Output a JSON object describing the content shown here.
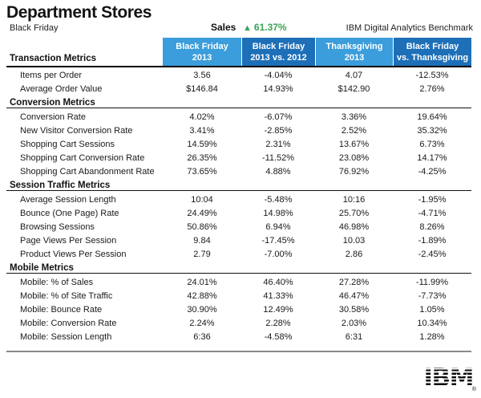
{
  "page": {
    "title": "Department Stores",
    "subtitle": "Black Friday",
    "sales_label": "Sales",
    "sales_arrow": "▲",
    "sales_change": "61.37%",
    "benchmark_label": "IBM Digital Analytics Benchmark"
  },
  "colors": {
    "light_blue": "#3b9ddb",
    "dark_blue": "#1d6fb8",
    "green": "#3aa355"
  },
  "columns": [
    {
      "line1": "Black Friday",
      "line2": "2013",
      "shade": "light",
      "width": 98
    },
    {
      "line1": "Black Friday",
      "line2": "2013 vs. 2012",
      "shade": "dark",
      "width": 92
    },
    {
      "line1": "Thanksgiving",
      "line2": "2013",
      "shade": "light",
      "width": 97
    },
    {
      "line1": "Black Friday",
      "line2": "vs. Thanksgiving",
      "shade": "dark",
      "width": 98
    }
  ],
  "sections": [
    {
      "name": "Transaction Metrics",
      "rows": [
        {
          "label": "Items per Order",
          "values": [
            "3.56",
            "-4.04%",
            "4.07",
            "-12.53%"
          ]
        },
        {
          "label": "Average Order Value",
          "values": [
            "$146.84",
            "14.93%",
            "$142.90",
            "2.76%"
          ]
        }
      ]
    },
    {
      "name": "Conversion Metrics",
      "rows": [
        {
          "label": "Conversion Rate",
          "values": [
            "4.02%",
            "-6.07%",
            "3.36%",
            "19.64%"
          ]
        },
        {
          "label": "New Visitor Conversion Rate",
          "values": [
            "3.41%",
            "-2.85%",
            "2.52%",
            "35.32%"
          ]
        },
        {
          "label": "Shopping Cart Sessions",
          "values": [
            "14.59%",
            "2.31%",
            "13.67%",
            "6.73%"
          ]
        },
        {
          "label": "Shopping Cart Conversion Rate",
          "values": [
            "26.35%",
            "-11.52%",
            "23.08%",
            "14.17%"
          ]
        },
        {
          "label": "Shopping Cart Abandonment Rate",
          "values": [
            "73.65%",
            "4.88%",
            "76.92%",
            "-4.25%"
          ]
        }
      ]
    },
    {
      "name": "Session Traffic Metrics",
      "rows": [
        {
          "label": "Average Session Length",
          "values": [
            "10:04",
            "-5.48%",
            "10:16",
            "-1.95%"
          ]
        },
        {
          "label": "Bounce (One Page) Rate",
          "values": [
            "24.49%",
            "14.98%",
            "25.70%",
            "-4.71%"
          ]
        },
        {
          "label": "Browsing Sessions",
          "values": [
            "50.86%",
            "6.94%",
            "46.98%",
            "8.26%"
          ]
        },
        {
          "label": "Page Views Per Session",
          "values": [
            "9.84",
            "-17.45%",
            "10.03",
            "-1.89%"
          ]
        },
        {
          "label": "Product Views Per Session",
          "values": [
            "2.79",
            "-7.00%",
            "2.86",
            "-2.45%"
          ]
        }
      ]
    },
    {
      "name": "Mobile Metrics",
      "rows": [
        {
          "label": "Mobile: % of Sales",
          "values": [
            "24.01%",
            "46.40%",
            "27.28%",
            "-11.99%"
          ]
        },
        {
          "label": "Mobile: % of Site Traffic",
          "values": [
            "42.88%",
            "41.33%",
            "46.47%",
            "-7.73%"
          ]
        },
        {
          "label": "Mobile: Bounce Rate",
          "values": [
            "30.90%",
            "12.49%",
            "30.58%",
            "1.05%"
          ]
        },
        {
          "label": "Mobile: Conversion Rate",
          "values": [
            "2.24%",
            "2.28%",
            "2.03%",
            "10.34%"
          ]
        },
        {
          "label": "Mobile: Session Length",
          "values": [
            "6:36",
            "-4.58%",
            "6:31",
            "1.28%"
          ]
        }
      ]
    }
  ],
  "chart_data": {
    "type": "table",
    "title": "Department Stores — Black Friday — IBM Digital Analytics Benchmark",
    "sales_change_pct": 61.37,
    "column_headers": [
      "Black Friday 2013",
      "Black Friday 2013 vs. 2012",
      "Thanksgiving 2013",
      "Black Friday vs. Thanksgiving"
    ],
    "row_groups": [
      "Transaction Metrics",
      "Conversion Metrics",
      "Session Traffic Metrics",
      "Mobile Metrics"
    ]
  },
  "footer": {
    "logo_text": "IBM",
    "registered_mark": "®"
  }
}
